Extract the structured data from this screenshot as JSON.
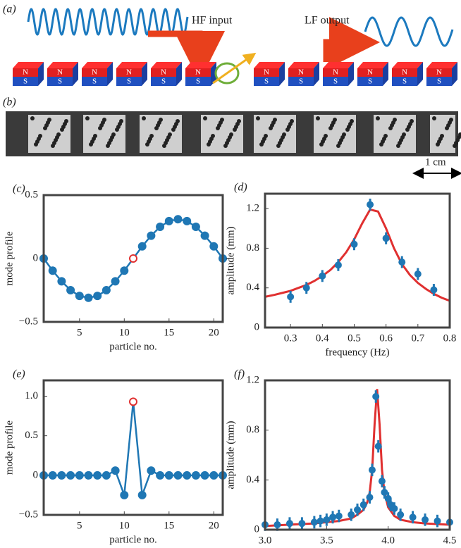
{
  "schematic": {
    "label": "(a)",
    "hf_input": "HF input",
    "lf_output": "LF output",
    "magnet_north": "N",
    "magnet_south": "S"
  },
  "photo": {
    "label": "(b)",
    "scale_bar": "1 cm"
  },
  "chart_data": [
    {
      "type": "line",
      "panel": "(c)",
      "x_label": "particle no.",
      "y_label": "mode profile",
      "color": "#1f77b4",
      "highlight_color": "#e03030",
      "highlight_point": 11,
      "x": [
        1,
        2,
        3,
        4,
        5,
        6,
        7,
        8,
        9,
        10,
        11,
        12,
        13,
        14,
        15,
        16,
        17,
        18,
        19,
        20,
        21
      ],
      "values": [
        0,
        -0.096,
        -0.18,
        -0.25,
        -0.295,
        -0.31,
        -0.295,
        -0.25,
        -0.18,
        -0.096,
        0,
        0.096,
        0.18,
        0.25,
        0.295,
        0.31,
        0.295,
        0.25,
        0.18,
        0.096,
        0
      ],
      "xlim": [
        1,
        21
      ],
      "xticks": [
        5,
        10,
        15,
        20
      ],
      "ylim": [
        -0.5,
        0.5
      ],
      "yticks": [
        {
          "value": -0.5,
          "label": "−0.5"
        },
        0,
        0.5
      ]
    },
    {
      "type": "scatter",
      "panel": "(d)",
      "x_label": "frequency (Hz)",
      "y_label": "amplitude (mm)",
      "series": [
        {
          "mode": "line",
          "color": "#e03030",
          "x": [
            0.22,
            0.25,
            0.275,
            0.3,
            0.325,
            0.35,
            0.375,
            0.4,
            0.425,
            0.45,
            0.475,
            0.5,
            0.525,
            0.55,
            0.575,
            0.6,
            0.625,
            0.65,
            0.675,
            0.7,
            0.725,
            0.75,
            0.775,
            0.8
          ],
          "values": [
            0.31,
            0.33,
            0.35,
            0.37,
            0.4,
            0.43,
            0.47,
            0.52,
            0.58,
            0.66,
            0.76,
            0.89,
            1.05,
            1.19,
            1.17,
            1.0,
            0.8,
            0.64,
            0.53,
            0.45,
            0.39,
            0.34,
            0.3,
            0.27
          ]
        },
        {
          "mode": "points",
          "color": "#1f77b4",
          "x": [
            0.3,
            0.35,
            0.4,
            0.45,
            0.5,
            0.55,
            0.6,
            0.65,
            0.7,
            0.75
          ],
          "values": [
            0.31,
            0.4,
            0.52,
            0.63,
            0.84,
            1.24,
            0.9,
            0.66,
            0.54,
            0.38
          ],
          "errors": [
            0.06,
            0.06,
            0.06,
            0.06,
            0.06,
            0.06,
            0.06,
            0.06,
            0.06,
            0.06
          ]
        }
      ],
      "xlim": [
        0.22,
        0.8
      ],
      "xticks": [
        0.3,
        0.4,
        0.5,
        0.6,
        0.7,
        0.8
      ],
      "ylim": [
        0,
        1.35
      ],
      "yticks": [
        0,
        0.4,
        0.8,
        1.2
      ]
    },
    {
      "type": "line",
      "panel": "(e)",
      "x_label": "particle no.",
      "y_label": "mode profile",
      "color": "#1f77b4",
      "highlight_color": "#e03030",
      "highlight_point": 11,
      "x": [
        1,
        2,
        3,
        4,
        5,
        6,
        7,
        8,
        9,
        10,
        11,
        12,
        13,
        14,
        15,
        16,
        17,
        18,
        19,
        20,
        21
      ],
      "values": [
        0,
        0,
        0,
        0,
        0,
        0,
        0,
        0,
        0.06,
        -0.25,
        0.93,
        -0.25,
        0.06,
        0,
        0,
        0,
        0,
        0,
        0,
        0,
        0
      ],
      "xlim": [
        1,
        21
      ],
      "xticks": [
        5,
        10,
        15,
        20
      ],
      "ylim": [
        -0.5,
        1.2
      ],
      "yticks": [
        {
          "value": -0.5,
          "label": "−0.5"
        },
        0,
        0.5,
        {
          "value": 1,
          "label": "1.0"
        }
      ]
    },
    {
      "type": "scatter",
      "panel": "(f)",
      "x_label": "frequency (Hz)",
      "y_label": "amplitude (mm)",
      "series": [
        {
          "mode": "line",
          "color": "#e03030",
          "x": [
            3.0,
            3.2,
            3.4,
            3.5,
            3.6,
            3.7,
            3.75,
            3.8,
            3.83,
            3.85,
            3.87,
            3.89,
            3.91,
            3.93,
            3.95,
            3.97,
            4.0,
            4.05,
            4.1,
            4.2,
            4.3,
            4.5
          ],
          "values": [
            0.03,
            0.04,
            0.05,
            0.06,
            0.07,
            0.09,
            0.12,
            0.16,
            0.22,
            0.3,
            0.48,
            0.85,
            1.13,
            0.85,
            0.48,
            0.3,
            0.18,
            0.11,
            0.08,
            0.06,
            0.05,
            0.04
          ]
        },
        {
          "mode": "points",
          "color": "#1f77b4",
          "x": [
            3.0,
            3.1,
            3.2,
            3.3,
            3.4,
            3.45,
            3.5,
            3.55,
            3.6,
            3.7,
            3.75,
            3.8,
            3.85,
            3.87,
            3.9,
            3.92,
            3.95,
            3.97,
            4.0,
            4.02,
            4.05,
            4.1,
            4.2,
            4.3,
            4.4,
            4.5
          ],
          "values": [
            0.04,
            0.04,
            0.05,
            0.05,
            0.06,
            0.07,
            0.08,
            0.1,
            0.11,
            0.12,
            0.16,
            0.2,
            0.26,
            0.48,
            1.07,
            0.67,
            0.39,
            0.3,
            0.25,
            0.2,
            0.17,
            0.12,
            0.1,
            0.08,
            0.07,
            0.06
          ],
          "errors": [
            0.05,
            0.05,
            0.05,
            0.05,
            0.05,
            0.05,
            0.05,
            0.05,
            0.05,
            0.05,
            0.05,
            0.05,
            0.05,
            0.05,
            0.05,
            0.05,
            0.05,
            0.05,
            0.05,
            0.05,
            0.05,
            0.05,
            0.05,
            0.05,
            0.05,
            0.05
          ]
        }
      ],
      "xlim": [
        3,
        4.5
      ],
      "xticks": [
        {
          "value": 3,
          "label": "3.0"
        },
        3.5,
        {
          "value": 4,
          "label": "4.0"
        },
        4.5
      ],
      "ylim": [
        0,
        1.2
      ],
      "yticks": [
        0,
        0.4,
        0.8,
        1.2
      ]
    }
  ]
}
